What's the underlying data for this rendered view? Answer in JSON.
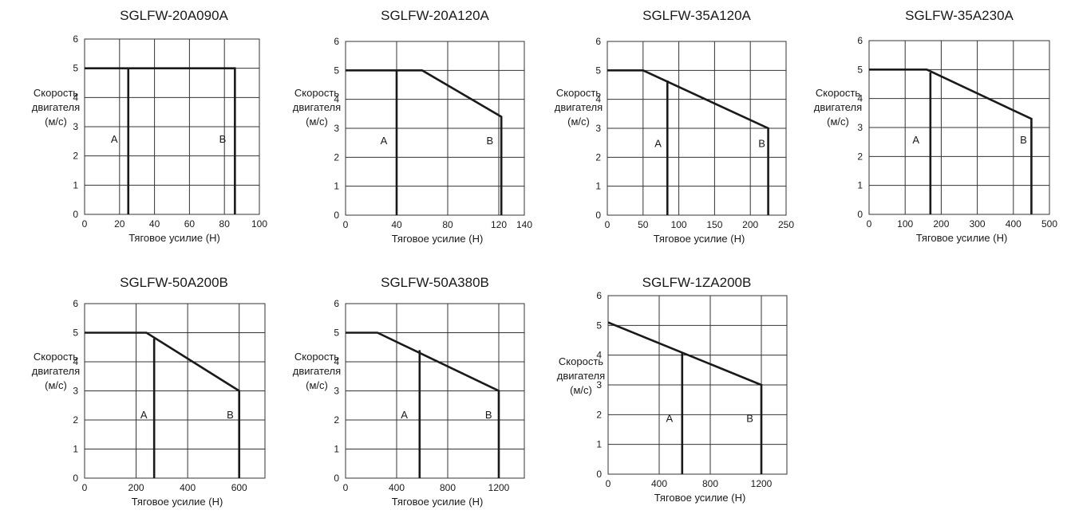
{
  "chart_data": [
    {
      "type": "line",
      "title": "SGLFW-20A090A",
      "xlabel": "Тяговое усилие (Н)",
      "ylabel": [
        "Скорость",
        "двигателя",
        "(м/с)"
      ],
      "xlim": [
        0,
        100
      ],
      "ylim": [
        0,
        6
      ],
      "x_ticks": [
        0,
        20,
        40,
        60,
        80,
        100
      ],
      "y_ticks": [
        0,
        1,
        2,
        3,
        4,
        5,
        6
      ],
      "grid": true,
      "curve": [
        [
          0,
          5
        ],
        [
          86,
          5
        ],
        [
          86,
          0
        ]
      ],
      "limit_a": {
        "x": [
          25,
          25
        ],
        "y": [
          0,
          5
        ]
      },
      "region_labels": [
        {
          "text": "A",
          "x": 17,
          "y": 2.45
        },
        {
          "text": "B",
          "x": 79,
          "y": 2.45
        }
      ]
    },
    {
      "type": "line",
      "title": "SGLFW-20A120A",
      "xlabel": "Тяговое усилие (Н)",
      "ylabel": [
        "Скорость",
        "двигателя",
        "(м/с)"
      ],
      "xlim": [
        0,
        140
      ],
      "ylim": [
        0,
        6
      ],
      "x_ticks": [
        0,
        40,
        80,
        120,
        140
      ],
      "y_ticks": [
        0,
        1,
        2,
        3,
        4,
        5,
        6
      ],
      "grid": true,
      "curve": [
        [
          0,
          5
        ],
        [
          60,
          5
        ],
        [
          122,
          3.4
        ],
        [
          122,
          0
        ]
      ],
      "limit_a": {
        "x": [
          40,
          40
        ],
        "y": [
          0,
          5
        ]
      },
      "region_labels": [
        {
          "text": "A",
          "x": 30,
          "y": 2.45
        },
        {
          "text": "B",
          "x": 113,
          "y": 2.45
        }
      ]
    },
    {
      "type": "line",
      "title": "SGLFW-35A120A",
      "xlabel": "Тяговое усилие (Н)",
      "ylabel": [
        "Скорость",
        "двигателя",
        "(м/с)"
      ],
      "xlim": [
        0,
        250
      ],
      "ylim": [
        0,
        6
      ],
      "x_ticks": [
        0,
        50,
        100,
        150,
        200,
        250
      ],
      "y_ticks": [
        0,
        1,
        2,
        3,
        4,
        5,
        6
      ],
      "grid": true,
      "curve": [
        [
          0,
          5
        ],
        [
          50,
          5
        ],
        [
          225,
          3
        ],
        [
          225,
          0
        ]
      ],
      "limit_a": {
        "x": [
          84,
          84
        ],
        "y": [
          0,
          4.65
        ]
      },
      "region_labels": [
        {
          "text": "A",
          "x": 71,
          "y": 2.35
        },
        {
          "text": "B",
          "x": 216,
          "y": 2.35
        }
      ]
    },
    {
      "type": "line",
      "title": "SGLFW-35A230A",
      "xlabel": "Тяговое усилие (Н)",
      "ylabel": [
        "Скорость",
        "двигателя",
        "(м/с)"
      ],
      "xlim": [
        0,
        500
      ],
      "ylim": [
        0,
        6
      ],
      "x_ticks": [
        0,
        100,
        200,
        300,
        400,
        500
      ],
      "y_ticks": [
        0,
        1,
        2,
        3,
        4,
        5,
        6
      ],
      "grid": true,
      "curve": [
        [
          0,
          5
        ],
        [
          160,
          5
        ],
        [
          450,
          3.3
        ],
        [
          450,
          0
        ]
      ],
      "limit_a": {
        "x": [
          170,
          170
        ],
        "y": [
          0,
          4.9
        ]
      },
      "region_labels": [
        {
          "text": "A",
          "x": 130,
          "y": 2.45
        },
        {
          "text": "B",
          "x": 428,
          "y": 2.45
        }
      ]
    },
    {
      "type": "line",
      "title": "SGLFW-50A200B",
      "xlabel": "Тяговое усилие (Н)",
      "ylabel": [
        "Скорость",
        "двигателя",
        "(м/с)"
      ],
      "xlim": [
        0,
        700
      ],
      "ylim": [
        0,
        6
      ],
      "x_ticks": [
        0,
        200,
        400,
        600
      ],
      "y_ticks": [
        0,
        1,
        2,
        3,
        4,
        5,
        6
      ],
      "grid": true,
      "curve": [
        [
          0,
          5
        ],
        [
          240,
          5
        ],
        [
          600,
          3
        ],
        [
          600,
          0
        ]
      ],
      "limit_a": {
        "x": [
          270,
          270
        ],
        "y": [
          0,
          4.8
        ]
      },
      "region_labels": [
        {
          "text": "A",
          "x": 230,
          "y": 2.05
        },
        {
          "text": "B",
          "x": 565,
          "y": 2.05
        }
      ]
    },
    {
      "type": "line",
      "title": "SGLFW-50A380B",
      "xlabel": "Тяговое усилие (Н)",
      "ylabel": [
        "Скорость",
        "двигателя",
        "(м/с)"
      ],
      "xlim": [
        0,
        1400
      ],
      "ylim": [
        0,
        6
      ],
      "x_ticks": [
        0,
        400,
        800,
        1200
      ],
      "y_ticks": [
        0,
        1,
        2,
        3,
        4,
        5,
        6
      ],
      "grid": true,
      "curve": [
        [
          0,
          5
        ],
        [
          250,
          5
        ],
        [
          1200,
          3
        ],
        [
          1200,
          0
        ]
      ],
      "limit_a": {
        "x": [
          580,
          580
        ],
        "y": [
          0,
          4.4
        ]
      },
      "region_labels": [
        {
          "text": "A",
          "x": 460,
          "y": 2.05
        },
        {
          "text": "B",
          "x": 1120,
          "y": 2.05
        }
      ]
    },
    {
      "type": "line",
      "title": "SGLFW-1ZA200B",
      "xlabel": "Тяговое усилие (Н)",
      "ylabel": [
        "Скорость",
        "двигателя",
        "(м/с)"
      ],
      "xlim": [
        0,
        1400
      ],
      "ylim": [
        0,
        6
      ],
      "x_ticks": [
        0,
        400,
        800,
        1200
      ],
      "y_ticks": [
        0,
        1,
        2,
        3,
        4,
        5,
        6
      ],
      "grid": true,
      "curve": [
        [
          0,
          5.1
        ],
        [
          1200,
          3
        ],
        [
          1200,
          0
        ]
      ],
      "limit_a": {
        "x": [
          580,
          580
        ],
        "y": [
          0,
          4.08
        ]
      },
      "region_labels": [
        {
          "text": "A",
          "x": 480,
          "y": 1.75
        },
        {
          "text": "B",
          "x": 1110,
          "y": 1.75
        }
      ]
    }
  ]
}
